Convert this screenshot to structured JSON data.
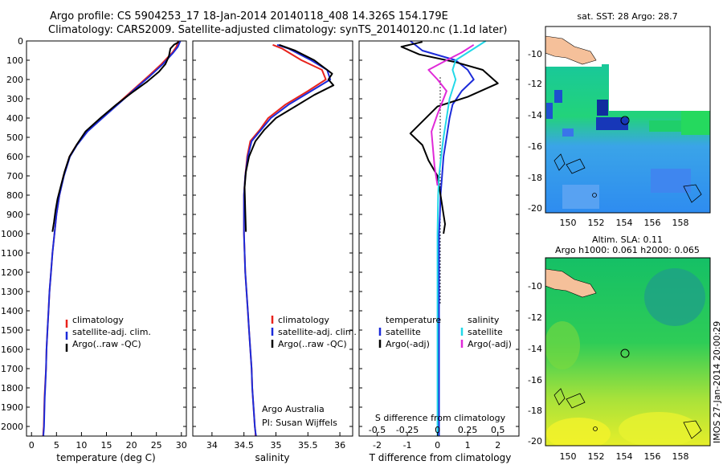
{
  "titles": {
    "line1": "Argo profile: CS 5904253_17 18-Jan-2014 20140118_408 14.326S 154.179E",
    "line2": "Climatology: CARS2009. Satellite-adjusted climatology: synTS_20140120.nc (1.1d later)"
  },
  "colors": {
    "climatology": "#e8231c",
    "satellite": "#1c2bd9",
    "argo": "#000000",
    "sat_salinity": "#22d8e8",
    "argo_salinity": "#e02ad8"
  },
  "chart_data": [
    {
      "type": "line",
      "id": "temperature",
      "xlabel": "temperature (deg C)",
      "xlim": [
        -1,
        31
      ],
      "xticks": [
        0,
        5,
        10,
        15,
        20,
        25,
        30
      ],
      "ylim": [
        0,
        2050
      ],
      "yticks": [
        0,
        100,
        200,
        300,
        400,
        500,
        600,
        700,
        800,
        900,
        1000,
        1100,
        1200,
        1300,
        1400,
        1500,
        1600,
        1700,
        1800,
        1900,
        2000
      ],
      "legend": [
        "climatology",
        "satellite-adj. clim.",
        "Argo(..raw -QC)"
      ],
      "series": [
        {
          "name": "climatology",
          "color_key": "climatology",
          "x": [
            29.4,
            29.0,
            28.2,
            26.0,
            23.5,
            20.5,
            17.5,
            14.0,
            11.0,
            9.0,
            7.6,
            6.4,
            5.6,
            5.0,
            4.6,
            4.2,
            3.9,
            3.6,
            3.4,
            3.2,
            3.0,
            2.9,
            2.7,
            2.6,
            2.55,
            2.5,
            2.45,
            2.4,
            2.35,
            2.3
          ],
          "depth": [
            0,
            30,
            60,
            120,
            180,
            250,
            320,
            400,
            470,
            540,
            600,
            700,
            800,
            900,
            1000,
            1100,
            1200,
            1300,
            1400,
            1500,
            1600,
            1700,
            1800,
            1850,
            1900,
            1950,
            2000,
            2020,
            2040,
            2050
          ]
        },
        {
          "name": "satellite-adj. clim.",
          "color_key": "satellite",
          "x": [
            29.8,
            29.3,
            28.4,
            26.3,
            23.8,
            20.7,
            17.7,
            14.2,
            11.2,
            9.1,
            7.7,
            6.5,
            5.6,
            5.0,
            4.6,
            4.2,
            3.9,
            3.6,
            3.4,
            3.2,
            3.0,
            2.9,
            2.75,
            2.65,
            2.6,
            2.55,
            2.5,
            2.45,
            2.4,
            2.4
          ],
          "depth": [
            0,
            30,
            60,
            120,
            180,
            250,
            320,
            400,
            470,
            540,
            600,
            700,
            800,
            900,
            1000,
            1100,
            1200,
            1300,
            1400,
            1500,
            1600,
            1700,
            1800,
            1850,
            1900,
            1950,
            2000,
            2020,
            2040,
            2050
          ]
        },
        {
          "name": "Argo(..raw -QC)",
          "color_key": "argo",
          "x": [
            29.5,
            28.5,
            27.8,
            27.5,
            26.8,
            25.5,
            23.2,
            20.0,
            17.0,
            13.8,
            10.8,
            9.0,
            7.6,
            6.6,
            5.8,
            5.2,
            4.8,
            4.5,
            4.2
          ],
          "depth": [
            5,
            20,
            40,
            80,
            120,
            160,
            210,
            270,
            330,
            400,
            470,
            540,
            600,
            680,
            760,
            820,
            880,
            940,
            990
          ]
        }
      ]
    },
    {
      "type": "line",
      "id": "salinity",
      "xlabel": "salinity",
      "xlim": [
        33.7,
        36.2
      ],
      "xticks": [
        34,
        34.5,
        35,
        35.5,
        36
      ],
      "xticklabels": [
        "34",
        "34.5",
        "35",
        "35.5",
        "36"
      ],
      "ylim": [
        0,
        2050
      ],
      "legend": [
        "climatology",
        "satellite-adj. clim.",
        "Argo(..raw -QC)"
      ],
      "annotation": [
        "Argo Australia",
        "PI: Susan Wijffels"
      ],
      "series": [
        {
          "name": "climatology",
          "color_key": "climatology",
          "x": [
            34.95,
            35.1,
            35.4,
            35.72,
            35.78,
            35.5,
            35.15,
            34.88,
            34.75,
            34.6,
            34.55,
            34.52,
            34.5,
            34.5,
            34.5,
            34.52,
            34.54,
            34.56,
            34.58,
            34.6,
            34.62,
            34.63,
            34.64,
            34.65,
            34.66,
            34.67,
            34.68,
            34.68
          ],
          "depth": [
            20,
            40,
            100,
            150,
            200,
            260,
            330,
            400,
            460,
            520,
            600,
            700,
            800,
            900,
            1000,
            1200,
            1300,
            1400,
            1500,
            1600,
            1700,
            1800,
            1850,
            1900,
            1950,
            2000,
            2030,
            2050
          ]
        },
        {
          "name": "satellite-adj. clim.",
          "color_key": "satellite",
          "x": [
            35.02,
            35.2,
            35.55,
            35.8,
            35.85,
            35.55,
            35.2,
            34.92,
            34.77,
            34.62,
            34.56,
            34.52,
            34.5,
            34.5,
            34.5,
            34.52,
            34.54,
            34.56,
            34.58,
            34.6,
            34.62,
            34.63,
            34.64,
            34.65,
            34.66,
            34.67,
            34.68,
            34.69
          ],
          "depth": [
            20,
            40,
            100,
            150,
            200,
            260,
            330,
            400,
            460,
            520,
            600,
            700,
            800,
            900,
            1000,
            1200,
            1300,
            1400,
            1500,
            1600,
            1700,
            1800,
            1850,
            1900,
            1950,
            2000,
            2030,
            2050
          ]
        },
        {
          "name": "Argo(..raw -QC)",
          "color_key": "argo",
          "x": [
            35.05,
            35.3,
            35.6,
            35.8,
            35.88,
            35.82,
            35.9,
            35.6,
            35.3,
            35.0,
            34.82,
            34.68,
            34.58,
            34.53,
            34.51,
            34.52,
            34.53
          ],
          "depth": [
            20,
            50,
            100,
            150,
            170,
            200,
            230,
            280,
            340,
            400,
            460,
            520,
            600,
            680,
            760,
            880,
            990
          ]
        }
      ]
    },
    {
      "type": "line",
      "id": "difference",
      "xlabel": "T difference from climatology",
      "xlabel_top": "S difference from climatology",
      "xlim": [
        -2.6,
        2.7
      ],
      "xticks": [
        -2,
        -1,
        0,
        1,
        2
      ],
      "top_ticklabels": [
        "-0.5",
        "-0.25",
        "0",
        "0.25",
        "0.5"
      ],
      "ylim": [
        0,
        2050
      ],
      "legend_temperature": [
        "temperature",
        "satellite",
        "Argo(-adj)"
      ],
      "legend_salinity": [
        "salinity",
        "satellite",
        "Argo(-adj)"
      ],
      "series": [
        {
          "name": "T satellite",
          "color_key": "satellite",
          "x": [
            -0.9,
            -0.5,
            0.6,
            1.0,
            1.2,
            0.8,
            0.5,
            0.4,
            0.3,
            0.2,
            0.15,
            0.1,
            0.08,
            0.05,
            0.05,
            0.05,
            0.05,
            0.05,
            0.05,
            0.05,
            0.05,
            0.05,
            0.05
          ],
          "depth": [
            0,
            50,
            100,
            150,
            200,
            260,
            330,
            400,
            500,
            600,
            700,
            800,
            900,
            1000,
            1100,
            1200,
            1300,
            1500,
            1700,
            1800,
            1900,
            2000,
            2050
          ]
        },
        {
          "name": "T Argo",
          "color_key": "argo",
          "x": [
            -0.5,
            -1.2,
            -0.6,
            0.6,
            1.5,
            2.0,
            1.0,
            0.0,
            -0.9,
            -0.5,
            -0.3,
            0.0,
            0.1,
            0.2,
            0.25,
            0.2
          ],
          "depth": [
            5,
            30,
            70,
            110,
            150,
            220,
            290,
            340,
            480,
            540,
            620,
            700,
            800,
            900,
            950,
            1000
          ]
        },
        {
          "name": "S satellite",
          "color_key": "sat_salinity",
          "x": [
            1.6,
            1.2,
            0.6,
            0.5,
            0.6,
            0.4,
            0.3,
            0.2,
            0.12,
            0.05,
            0.02,
            0.0,
            0.0,
            0.0,
            0.0,
            0.0
          ],
          "depth": [
            0,
            40,
            100,
            150,
            200,
            300,
            400,
            500,
            600,
            700,
            800,
            1000,
            1200,
            1500,
            1800,
            2050
          ]
        },
        {
          "name": "S Argo",
          "color_key": "argo_salinity",
          "x": [
            1.2,
            0.8,
            0.3,
            -0.3,
            0.0,
            0.3,
            0.0,
            -0.2,
            -0.15,
            -0.1,
            0.0
          ],
          "depth": [
            20,
            60,
            100,
            150,
            200,
            260,
            380,
            470,
            560,
            650,
            750
          ]
        }
      ]
    }
  ],
  "maps": {
    "sst": {
      "title": "sat. SST: 28 Argo: 28.7",
      "xticks": [
        "150",
        "152",
        "154",
        "156",
        "158"
      ],
      "yticks": [
        "-10",
        "-12",
        "-14",
        "-16",
        "-18",
        "-20"
      ]
    },
    "sla": {
      "title_line1": "Altim. SLA: 0.11",
      "title_line2": "Argo h1000: 0.061 h2000: 0.065",
      "xticks": [
        "150",
        "152",
        "154",
        "156",
        "158"
      ],
      "yticks": [
        "-10",
        "-12",
        "-14",
        "-16",
        "-18",
        "-20"
      ]
    }
  },
  "watermark": "IMOS 27-Jan-2014 20:00:29"
}
